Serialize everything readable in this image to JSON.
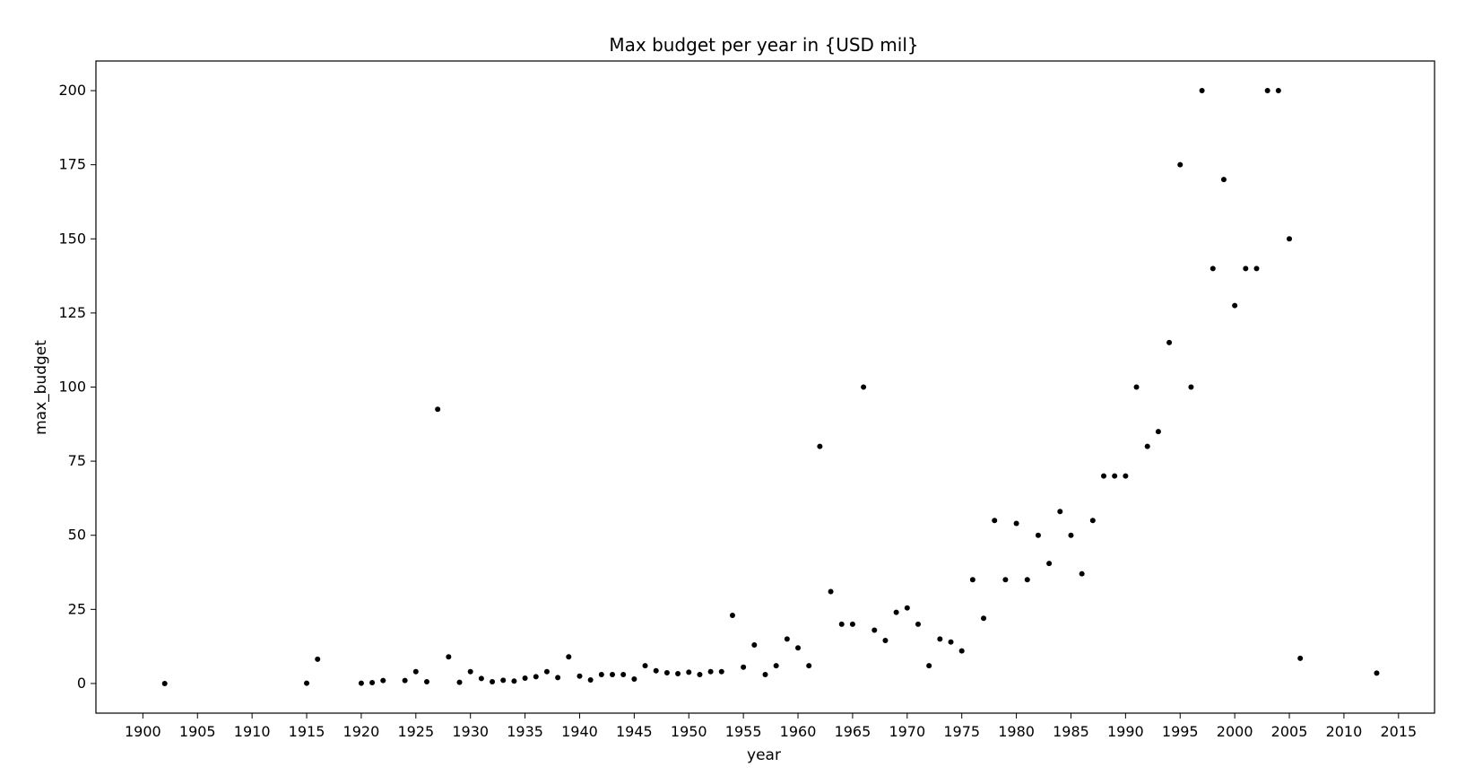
{
  "chart_data": {
    "type": "scatter",
    "title": "Max budget per year in {USD mil}",
    "xlabel": "year",
    "ylabel": "max_budget",
    "xlim": [
      1895.7,
      2018.3
    ],
    "ylim": [
      -10,
      210
    ],
    "xticks": [
      1900,
      1905,
      1910,
      1915,
      1920,
      1925,
      1930,
      1935,
      1940,
      1945,
      1950,
      1955,
      1960,
      1965,
      1970,
      1975,
      1980,
      1985,
      1990,
      1995,
      2000,
      2005,
      2010,
      2015
    ],
    "yticks": [
      0,
      25,
      50,
      75,
      100,
      125,
      150,
      175,
      200
    ],
    "grid": false,
    "legend": "none",
    "marker_color": "#000000",
    "series": [
      {
        "x": [
          1902,
          1915,
          1916,
          1920,
          1921,
          1922,
          1924,
          1925,
          1926,
          1927,
          1928,
          1929,
          1930,
          1931,
          1932,
          1933,
          1934,
          1935,
          1936,
          1937,
          1938,
          1939,
          1940,
          1941,
          1942,
          1943,
          1944,
          1945,
          1946,
          1947,
          1948,
          1949,
          1950,
          1951,
          1952,
          1953,
          1954,
          1955,
          1956,
          1957,
          1958,
          1959,
          1960,
          1961,
          1962,
          1963,
          1964,
          1965,
          1966,
          1967,
          1968,
          1969,
          1970,
          1971,
          1972,
          1973,
          1974,
          1975,
          1976,
          1977,
          1978,
          1979,
          1980,
          1981,
          1982,
          1983,
          1984,
          1985,
          1986,
          1987,
          1988,
          1989,
          1990,
          1991,
          1992,
          1993,
          1994,
          1995,
          1996,
          1997,
          1998,
          1999,
          2000,
          2001,
          2002,
          2003,
          2004,
          2005,
          2006,
          2013
        ],
        "y": [
          0.0,
          0.1,
          8.2,
          0.1,
          0.3,
          1.0,
          1.0,
          4.0,
          0.6,
          92.5,
          9.0,
          0.4,
          4.0,
          1.7,
          0.6,
          1.1,
          0.8,
          1.8,
          2.3,
          4.0,
          2.0,
          9.0,
          2.5,
          1.2,
          3.0,
          3.0,
          3.0,
          1.5,
          6.0,
          4.3,
          3.6,
          3.3,
          3.8,
          3.0,
          4.0,
          4.0,
          23.0,
          5.5,
          13.0,
          3.0,
          6.0,
          15.0,
          12.0,
          6.0,
          80.0,
          31.0,
          20.0,
          20.0,
          100.0,
          18.0,
          14.5,
          24.0,
          25.5,
          20.0,
          6.0,
          15.0,
          14.0,
          11.0,
          35.0,
          22.0,
          55.0,
          35.0,
          54.0,
          35.0,
          50.0,
          40.5,
          58.0,
          50.0,
          37.0,
          55.0,
          70.0,
          70.0,
          70.0,
          100.0,
          80.0,
          85.0,
          115.0,
          175.0,
          100.0,
          200.0,
          140.0,
          170.0,
          127.5,
          140.0,
          140.0,
          200.0,
          200.0,
          150.0,
          8.5,
          3.5
        ]
      }
    ]
  }
}
